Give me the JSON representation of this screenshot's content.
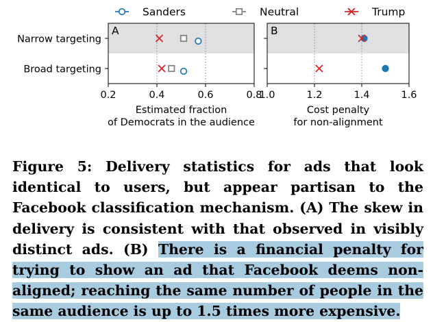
{
  "legend": [
    {
      "label": "Sanders",
      "marker": "circle-open",
      "color": "#1f77b4"
    },
    {
      "label": "Neutral",
      "marker": "square-open",
      "color": "#7f7f7f"
    },
    {
      "label": "Trump",
      "marker": "x",
      "color": "#d62728"
    }
  ],
  "caption": {
    "plain": "Figure 5: Delivery statistics for ads that look identical to users, but appear partisan to the Facebook classification mechanism. (A) The skew in delivery is consistent with that observed in visibly distinct ads. (B) ",
    "highlighted": "There is a financial penalty for trying to show an ad that Facebook deems non-aligned; reaching the same number of people in the same audience is up to 1.5 times more expensive."
  },
  "colors": {
    "sanders": "#1f77b4",
    "neutral": "#7f7f7f",
    "trump": "#d62728",
    "band": "#e0e0e0",
    "highlight": "#a9cbe0"
  },
  "chart_data": [
    {
      "type": "scatter",
      "panel_label": "A",
      "categories": [
        "Narrow targeting",
        "Broad targeting"
      ],
      "xlabel": "Estimated fraction\nof Democrats in the audience",
      "xlim": [
        0.2,
        0.8
      ],
      "xticks": [
        0.2,
        0.4,
        0.6,
        0.8
      ],
      "xtick_labels": [
        "0.2",
        "0.4",
        "0.6",
        "0.8"
      ],
      "grid": "vertical dotted",
      "series": [
        {
          "name": "Sanders",
          "values": [
            0.57,
            0.51
          ]
        },
        {
          "name": "Neutral",
          "values": [
            0.51,
            0.46
          ]
        },
        {
          "name": "Trump",
          "values": [
            0.41,
            0.42
          ]
        }
      ]
    },
    {
      "type": "scatter",
      "panel_label": "B",
      "categories": [
        "Narrow targeting",
        "Broad targeting"
      ],
      "xlabel": "Cost penalty\nfor non-alignment",
      "xlim": [
        1.0,
        1.6
      ],
      "xticks": [
        1.0,
        1.2,
        1.4,
        1.6
      ],
      "xtick_labels": [
        "1.0",
        "1.2",
        "1.4",
        "1.6"
      ],
      "grid": "vertical dotted",
      "series": [
        {
          "name": "Sanders",
          "marker": "filled-circle",
          "values": [
            1.41,
            1.5
          ]
        },
        {
          "name": "Trump",
          "values": [
            1.4,
            1.22
          ]
        }
      ]
    }
  ]
}
